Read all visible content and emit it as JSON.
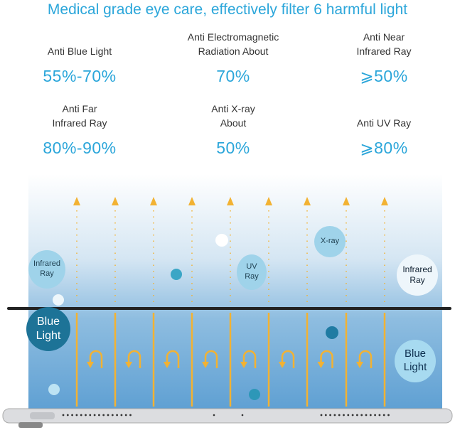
{
  "title": "Medical grade eye care, effectively filter 6 harmful light",
  "specs": [
    {
      "label": "Anti Blue Light",
      "value": "55%-70%"
    },
    {
      "label": "Anti Electromagnetic\nRadiation About",
      "value": "70%"
    },
    {
      "label": "Anti Near\nInfrared Ray",
      "value": "⩾50%"
    },
    {
      "label": "Anti Far\nInfrared Ray",
      "value": "80%-90%"
    },
    {
      "label": "Anti X-ray\nAbout",
      "value": "50%"
    },
    {
      "label": "Anti UV Ray",
      "value": "⩾80%"
    }
  ],
  "bubbles": {
    "infrared_left": "Infrared\nRay",
    "uv": "UV\nRay",
    "xray": "X-ray",
    "infrared_right": "Infrared\nRay",
    "blue_left": "Blue\nLight",
    "blue_right": "Blue\nLight"
  },
  "colors": {
    "accent": "#2ba6da",
    "arrow": "#f2b233",
    "panel_bottom": "#5c9ed2"
  }
}
